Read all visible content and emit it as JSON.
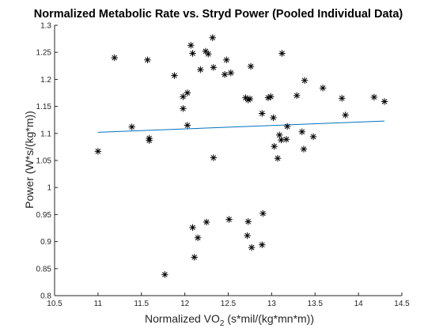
{
  "chart_data": {
    "type": "scatter",
    "title": "Normalized Metabolic Rate vs. Stryd Power (Pooled Individual Data)",
    "xlabel": {
      "main": "Normalized VO",
      "sub": "2",
      "rest": " (s*mil/(kg*mn*m))"
    },
    "ylabel": "Power (W*s/(kg*m))",
    "xlim": [
      10.5,
      14.5
    ],
    "ylim": [
      0.8,
      1.3
    ],
    "xticks": [
      10.5,
      11,
      11.5,
      12,
      12.5,
      13,
      13.5,
      14,
      14.5
    ],
    "xtick_labels": [
      "10.5",
      "11",
      "11.5",
      "12",
      "12.5",
      "13",
      "13.5",
      "14",
      "14.5"
    ],
    "yticks": [
      0.8,
      0.85,
      0.9,
      0.95,
      1,
      1.05,
      1.1,
      1.15,
      1.2,
      1.25,
      1.3
    ],
    "ytick_labels": [
      "0.8",
      "0.85",
      "0.9",
      "0.95",
      "1",
      "1.05",
      "1.1",
      "1.15",
      "1.2",
      "1.25",
      "1.3"
    ],
    "grid": false,
    "marker": "asterisk",
    "marker_color": "#000000",
    "fit_line_color": "#0072BD",
    "points": [
      [
        11.0,
        1.067
      ],
      [
        11.19,
        1.24
      ],
      [
        11.39,
        1.112
      ],
      [
        11.57,
        1.236
      ],
      [
        11.59,
        1.091
      ],
      [
        11.59,
        1.087
      ],
      [
        11.88,
        1.207
      ],
      [
        11.98,
        1.168
      ],
      [
        11.98,
        1.146
      ],
      [
        12.03,
        1.175
      ],
      [
        12.03,
        1.115
      ],
      [
        12.07,
        1.263
      ],
      [
        12.09,
        1.248
      ],
      [
        12.18,
        1.218
      ],
      [
        12.24,
        1.252
      ],
      [
        12.27,
        1.247
      ],
      [
        12.32,
        1.277
      ],
      [
        12.33,
        1.222
      ],
      [
        12.33,
        1.055
      ],
      [
        12.46,
        1.209
      ],
      [
        12.48,
        1.236
      ],
      [
        12.53,
        1.212
      ],
      [
        12.7,
        1.166
      ],
      [
        12.73,
        1.162
      ],
      [
        12.76,
        1.224
      ],
      [
        12.75,
        1.164
      ],
      [
        12.89,
        1.137
      ],
      [
        12.96,
        1.166
      ],
      [
        12.99,
        1.168
      ],
      [
        13.02,
        1.129
      ],
      [
        13.03,
        1.076
      ],
      [
        13.07,
        1.054
      ],
      [
        13.09,
        1.097
      ],
      [
        13.11,
        1.088
      ],
      [
        13.12,
        1.248
      ],
      [
        13.17,
        1.089
      ],
      [
        13.18,
        1.113
      ],
      [
        13.29,
        1.17
      ],
      [
        13.35,
        1.103
      ],
      [
        13.37,
        1.071
      ],
      [
        13.38,
        1.198
      ],
      [
        13.48,
        1.094
      ],
      [
        13.59,
        1.184
      ],
      [
        13.81,
        1.165
      ],
      [
        13.85,
        1.134
      ],
      [
        14.18,
        1.167
      ],
      [
        14.3,
        1.159
      ],
      [
        11.77,
        0.839
      ],
      [
        12.09,
        0.926
      ],
      [
        12.11,
        0.871
      ],
      [
        12.15,
        0.907
      ],
      [
        12.25,
        0.936
      ],
      [
        12.51,
        0.941
      ],
      [
        12.72,
        0.911
      ],
      [
        12.73,
        0.937
      ],
      [
        12.77,
        0.889
      ],
      [
        12.89,
        0.894
      ],
      [
        12.9,
        0.952
      ]
    ],
    "fit_line": [
      [
        11.0,
        1.102
      ],
      [
        14.3,
        1.123
      ]
    ]
  }
}
